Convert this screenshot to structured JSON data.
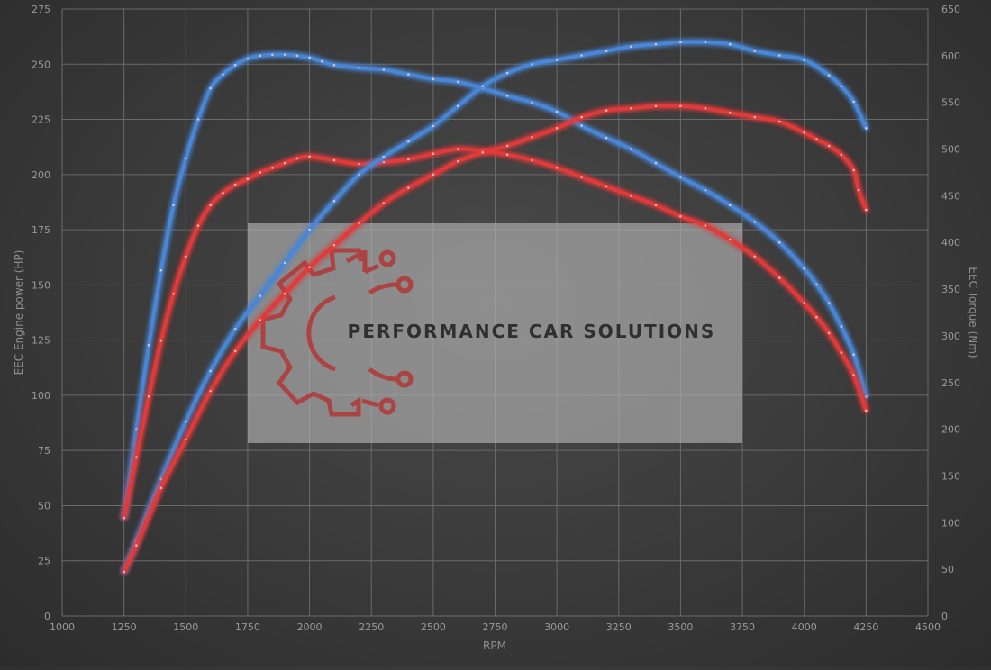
{
  "chart_data": {
    "type": "line",
    "title": "",
    "xlabel": "RPM",
    "ylabel": "EEC Engine power (HP)",
    "y2label": "EEC Torque (Nm)",
    "xlim": [
      1000,
      4500
    ],
    "ylim": [
      0,
      275
    ],
    "y2lim": [
      0,
      650
    ],
    "x_ticks": [
      1000,
      1250,
      1500,
      1750,
      2000,
      2250,
      2500,
      2750,
      3000,
      3250,
      3500,
      3750,
      4000,
      4250,
      4500
    ],
    "y_ticks": [
      0,
      25,
      50,
      75,
      100,
      125,
      150,
      175,
      200,
      225,
      250,
      275
    ],
    "y2_ticks": [
      0,
      50,
      100,
      150,
      200,
      250,
      300,
      350,
      400,
      450,
      500,
      550,
      600,
      650
    ],
    "grid": true,
    "legend": "none",
    "series": [
      {
        "axis": "right",
        "color": "#4a86d6",
        "x": [
          1250,
          1300,
          1350,
          1400,
          1450,
          1500,
          1550,
          1600,
          1650,
          1700,
          1750,
          1800,
          1850,
          1900,
          1950,
          2000,
          2050,
          2100,
          2200,
          2300,
          2400,
          2500,
          2600,
          2700,
          2800,
          2900,
          3000,
          3100,
          3200,
          3300,
          3400,
          3500,
          3600,
          3700,
          3800,
          3900,
          4000,
          4050,
          4100,
          4150,
          4200,
          4250
        ],
        "values": [
          105,
          200,
          290,
          370,
          440,
          490,
          532,
          565,
          580,
          590,
          597,
          600,
          601,
          601,
          600,
          598,
          594,
          590,
          587,
          585,
          580,
          575,
          572,
          565,
          557,
          550,
          540,
          525,
          512,
          500,
          485,
          470,
          456,
          440,
          422,
          400,
          372,
          355,
          335,
          310,
          280,
          235
        ]
      },
      {
        "axis": "right",
        "color": "#e03a3a",
        "x": [
          1250,
          1300,
          1350,
          1400,
          1450,
          1500,
          1550,
          1600,
          1650,
          1700,
          1750,
          1800,
          1850,
          1900,
          1950,
          2000,
          2100,
          2200,
          2300,
          2400,
          2500,
          2600,
          2700,
          2800,
          2900,
          3000,
          3100,
          3200,
          3300,
          3400,
          3500,
          3600,
          3700,
          3800,
          3900,
          4000,
          4050,
          4100,
          4150,
          4200,
          4250
        ],
        "values": [
          105,
          170,
          235,
          295,
          345,
          385,
          418,
          440,
          453,
          462,
          468,
          475,
          480,
          485,
          490,
          492,
          488,
          484,
          486,
          489,
          495,
          500,
          498,
          494,
          488,
          480,
          470,
          460,
          450,
          440,
          428,
          418,
          403,
          385,
          362,
          335,
          320,
          303,
          282,
          258,
          220
        ]
      },
      {
        "axis": "left",
        "color": "#4a86d6",
        "x": [
          1250,
          1300,
          1400,
          1500,
          1600,
          1700,
          1800,
          1900,
          2000,
          2100,
          2200,
          2300,
          2400,
          2500,
          2600,
          2700,
          2800,
          2900,
          3000,
          3100,
          3200,
          3300,
          3400,
          3500,
          3600,
          3700,
          3800,
          3900,
          4000,
          4100,
          4150,
          4200,
          4250
        ],
        "values": [
          20,
          34,
          62,
          88,
          111,
          130,
          145,
          160,
          175,
          188,
          200,
          208,
          215,
          222,
          231,
          240,
          246,
          250,
          252,
          254,
          256,
          258,
          259,
          260,
          260,
          259,
          256,
          254,
          252,
          245,
          240,
          233,
          221
        ]
      },
      {
        "axis": "left",
        "color": "#e03a3a",
        "x": [
          1250,
          1300,
          1400,
          1500,
          1600,
          1700,
          1800,
          1900,
          2000,
          2100,
          2200,
          2300,
          2400,
          2500,
          2600,
          2700,
          2800,
          2900,
          3000,
          3100,
          3200,
          3300,
          3400,
          3500,
          3600,
          3700,
          3800,
          3900,
          4000,
          4050,
          4100,
          4150,
          4200,
          4220,
          4250
        ],
        "values": [
          20,
          32,
          58,
          80,
          102,
          120,
          134,
          146,
          158,
          168,
          178,
          187,
          194,
          200,
          206,
          210,
          213,
          217,
          221,
          226,
          229,
          230,
          231,
          231,
          230,
          228,
          226,
          224,
          219,
          216,
          213,
          209,
          202,
          193,
          184
        ]
      }
    ]
  },
  "watermark": {
    "text": "PERFORMANCE CAR SOLUTIONS"
  }
}
